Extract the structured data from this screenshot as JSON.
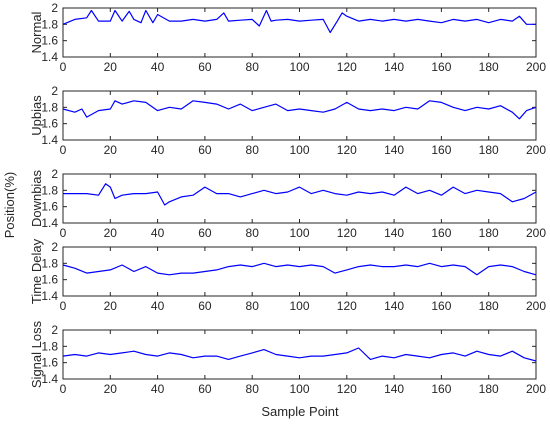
{
  "chart_data": {
    "type": "line",
    "ylabel": "Position(%)",
    "xlabel": "Sample Point",
    "line_color": "#0000ff",
    "xlim": [
      0,
      200
    ],
    "xticks": [
      0,
      20,
      40,
      60,
      80,
      100,
      120,
      140,
      160,
      180,
      200
    ],
    "ylim": [
      1.4,
      2.0
    ],
    "yticks": [
      "1.4",
      "1.6",
      "1.8",
      "2"
    ],
    "grid": false,
    "panels": [
      {
        "label": "Normal",
        "x": [
          0,
          5,
          10,
          12,
          15,
          20,
          22,
          25,
          28,
          30,
          33,
          35,
          38,
          40,
          45,
          50,
          55,
          60,
          65,
          68,
          70,
          75,
          80,
          83,
          86,
          88,
          90,
          95,
          100,
          105,
          110,
          113,
          116,
          118,
          120,
          125,
          130,
          135,
          140,
          145,
          150,
          155,
          160,
          165,
          170,
          175,
          180,
          185,
          190,
          193,
          196,
          200
        ],
        "values": [
          1.8,
          1.86,
          1.88,
          1.97,
          1.84,
          1.84,
          1.97,
          1.84,
          1.96,
          1.86,
          1.82,
          1.97,
          1.82,
          1.92,
          1.84,
          1.84,
          1.86,
          1.84,
          1.86,
          1.94,
          1.84,
          1.85,
          1.86,
          1.78,
          1.97,
          1.84,
          1.85,
          1.86,
          1.84,
          1.85,
          1.86,
          1.7,
          1.84,
          1.94,
          1.9,
          1.84,
          1.86,
          1.84,
          1.86,
          1.84,
          1.86,
          1.84,
          1.82,
          1.86,
          1.84,
          1.86,
          1.82,
          1.86,
          1.84,
          1.9,
          1.8,
          1.8
        ]
      },
      {
        "label": "Upbias",
        "x": [
          0,
          5,
          8,
          10,
          15,
          20,
          22,
          25,
          30,
          35,
          40,
          45,
          50,
          55,
          60,
          65,
          70,
          75,
          80,
          85,
          90,
          95,
          100,
          105,
          110,
          115,
          120,
          125,
          130,
          135,
          140,
          145,
          150,
          155,
          160,
          165,
          170,
          175,
          180,
          185,
          190,
          193,
          196,
          200
        ],
        "values": [
          1.78,
          1.74,
          1.78,
          1.68,
          1.76,
          1.78,
          1.88,
          1.84,
          1.88,
          1.86,
          1.76,
          1.8,
          1.78,
          1.88,
          1.86,
          1.84,
          1.78,
          1.84,
          1.76,
          1.8,
          1.84,
          1.76,
          1.78,
          1.76,
          1.74,
          1.78,
          1.86,
          1.78,
          1.76,
          1.78,
          1.76,
          1.8,
          1.78,
          1.88,
          1.86,
          1.8,
          1.76,
          1.8,
          1.78,
          1.82,
          1.74,
          1.66,
          1.76,
          1.8
        ]
      },
      {
        "label": "Downbias",
        "x": [
          0,
          5,
          10,
          15,
          18,
          20,
          22,
          25,
          30,
          35,
          40,
          43,
          45,
          50,
          55,
          60,
          65,
          70,
          75,
          80,
          85,
          90,
          95,
          100,
          105,
          110,
          115,
          120,
          125,
          130,
          135,
          140,
          145,
          150,
          155,
          160,
          165,
          170,
          175,
          180,
          185,
          190,
          195,
          200
        ],
        "values": [
          1.76,
          1.76,
          1.76,
          1.74,
          1.88,
          1.84,
          1.7,
          1.74,
          1.76,
          1.76,
          1.78,
          1.62,
          1.66,
          1.72,
          1.74,
          1.84,
          1.76,
          1.76,
          1.72,
          1.76,
          1.8,
          1.76,
          1.78,
          1.84,
          1.76,
          1.8,
          1.76,
          1.74,
          1.78,
          1.76,
          1.78,
          1.74,
          1.84,
          1.76,
          1.8,
          1.74,
          1.84,
          1.76,
          1.8,
          1.78,
          1.76,
          1.66,
          1.7,
          1.78
        ]
      },
      {
        "label": "Time Delay",
        "x": [
          0,
          5,
          10,
          15,
          20,
          25,
          30,
          35,
          40,
          45,
          50,
          55,
          60,
          65,
          70,
          75,
          80,
          85,
          90,
          95,
          100,
          105,
          110,
          115,
          120,
          125,
          130,
          135,
          140,
          145,
          150,
          155,
          160,
          165,
          170,
          175,
          180,
          185,
          190,
          195,
          200
        ],
        "values": [
          1.78,
          1.74,
          1.68,
          1.7,
          1.72,
          1.78,
          1.7,
          1.76,
          1.68,
          1.66,
          1.68,
          1.68,
          1.7,
          1.72,
          1.76,
          1.78,
          1.76,
          1.8,
          1.76,
          1.78,
          1.76,
          1.78,
          1.76,
          1.68,
          1.72,
          1.76,
          1.78,
          1.76,
          1.76,
          1.78,
          1.76,
          1.8,
          1.76,
          1.78,
          1.76,
          1.66,
          1.76,
          1.78,
          1.76,
          1.7,
          1.66
        ]
      },
      {
        "label": "Signal Loss",
        "x": [
          0,
          5,
          10,
          15,
          20,
          25,
          30,
          35,
          40,
          45,
          50,
          55,
          60,
          65,
          70,
          75,
          80,
          85,
          90,
          95,
          100,
          105,
          110,
          115,
          120,
          125,
          130,
          135,
          140,
          145,
          150,
          155,
          160,
          165,
          170,
          175,
          180,
          185,
          190,
          195,
          200
        ],
        "values": [
          1.68,
          1.7,
          1.68,
          1.72,
          1.7,
          1.72,
          1.74,
          1.7,
          1.68,
          1.72,
          1.7,
          1.66,
          1.68,
          1.68,
          1.64,
          1.68,
          1.72,
          1.76,
          1.7,
          1.68,
          1.66,
          1.68,
          1.68,
          1.7,
          1.72,
          1.78,
          1.64,
          1.68,
          1.66,
          1.7,
          1.68,
          1.66,
          1.7,
          1.72,
          1.68,
          1.74,
          1.7,
          1.68,
          1.74,
          1.66,
          1.62
        ]
      }
    ]
  }
}
